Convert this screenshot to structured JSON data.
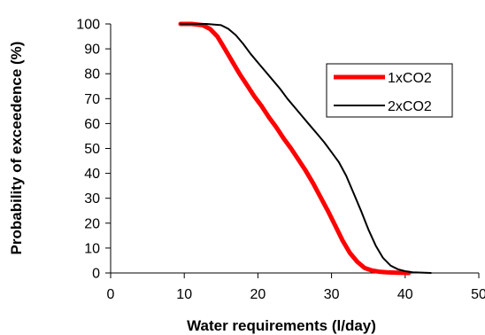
{
  "chart_data": {
    "type": "line",
    "title": "",
    "xlabel": "Water requirements (l/day)",
    "ylabel": "Probability of exceedence (%)",
    "xlim": [
      0,
      50
    ],
    "ylim": [
      0,
      100
    ],
    "xticks": [
      "0",
      "10",
      "20",
      "30",
      "40",
      "50"
    ],
    "yticks": [
      "0",
      "10",
      "20",
      "30",
      "40",
      "50",
      "60",
      "70",
      "80",
      "90",
      "100"
    ],
    "grid": false,
    "legend_position": "right",
    "series": [
      {
        "name": "1xCO2",
        "color": "#ff0000",
        "x": [
          9.5,
          11,
          12.5,
          13.5,
          14.5,
          15.5,
          16.5,
          17.5,
          18.5,
          19.5,
          20.5,
          21.5,
          22.5,
          23.5,
          24.5,
          25.5,
          26.5,
          27.5,
          28.5,
          29.5,
          30.5,
          31.5,
          32.5,
          33.5,
          34.5,
          35.5,
          36.5,
          37.5,
          39,
          40.5
        ],
        "y": [
          100,
          100,
          99.5,
          98,
          95,
          90,
          85,
          80,
          75.5,
          71,
          67,
          62.5,
          58.5,
          54,
          50,
          45.5,
          41,
          36,
          30.5,
          25,
          19,
          13,
          8,
          4.5,
          2,
          1,
          0.5,
          0.3,
          0.1,
          0
        ]
      },
      {
        "name": "2xCO2",
        "color": "#000000",
        "x": [
          9.5,
          11,
          13,
          15,
          16,
          17,
          18,
          19,
          20,
          21,
          22,
          23,
          24,
          25,
          26,
          27,
          28,
          29,
          30,
          31,
          32,
          33,
          34,
          35,
          36,
          37,
          38,
          39,
          40,
          41,
          43.5
        ],
        "y": [
          100,
          100,
          100,
          99.5,
          98,
          95.5,
          92,
          88,
          84.5,
          81,
          77.5,
          74,
          70,
          66.5,
          63,
          59.5,
          56,
          52.5,
          48.5,
          44.5,
          39,
          32,
          25,
          17.5,
          11,
          6,
          3,
          1.5,
          0.7,
          0.3,
          0
        ]
      }
    ]
  }
}
